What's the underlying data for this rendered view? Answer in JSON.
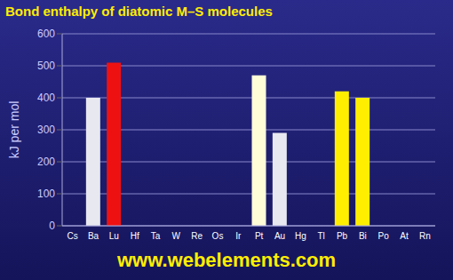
{
  "chart_data": {
    "type": "bar",
    "title": "Bond enthalpy of diatomic M–S molecules",
    "y_label": "kJ per mol",
    "source": "www.webelements.com",
    "categories": [
      "Cs",
      "Ba",
      "Lu",
      "Hf",
      "Ta",
      "W",
      "Re",
      "Os",
      "Ir",
      "Pt",
      "Au",
      "Hg",
      "Tl",
      "Pb",
      "Bi",
      "Po",
      "At",
      "Rn"
    ],
    "values": [
      null,
      400,
      510,
      null,
      null,
      null,
      null,
      null,
      null,
      470,
      290,
      null,
      null,
      420,
      400,
      null,
      null,
      null
    ],
    "colors": [
      "#e8e8f0",
      "#e8e8f0",
      "#ee1111",
      "#ee1111",
      "#ee1111",
      "#ee1111",
      "#ee1111",
      "#ee1111",
      "#ee1111",
      "#fffcd8",
      "#e8e8f0",
      "#ffee33",
      "#ffee33",
      "#ffee00",
      "#ffee00",
      "#ffee00",
      "#ffee00",
      "#ffee00"
    ],
    "ylim": [
      0,
      600
    ],
    "yticks": [
      0,
      100,
      200,
      300,
      400,
      500,
      600
    ],
    "grid": true
  }
}
